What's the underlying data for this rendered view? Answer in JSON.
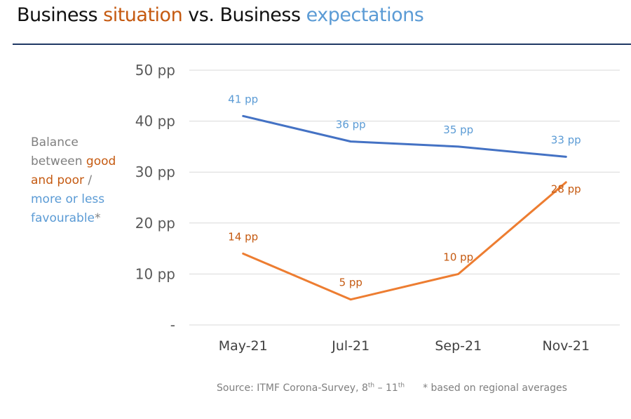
{
  "title": {
    "part1": "Business ",
    "part2": "situation",
    "part3": " vs. Business ",
    "part4": "expectations"
  },
  "ylabel": {
    "grey1": "Balance between",
    "orange": "good and poor",
    "sep": " / ",
    "blue": "more or less favourable",
    "star": "*"
  },
  "footer": {
    "source_prefix": "Source: ITMF Corona-Survey, 8",
    "sup1": "th",
    "dash": " – 11",
    "sup2": "th",
    "note": "* based on regional averages"
  },
  "colors": {
    "expectations": "#4472C4",
    "situation": "#ED7D31",
    "expectations_label": "#5B9BD5",
    "situation_label": "#C55A11",
    "grid": "#D9D9D9",
    "title_rule": "#1F3864"
  },
  "chart_data": {
    "type": "line",
    "categories": [
      "May-21",
      "Jul-21",
      "Sep-21",
      "Nov-21"
    ],
    "series": [
      {
        "key": "expectations",
        "values": [
          41,
          36,
          35,
          33
        ],
        "labels": [
          "41 pp",
          "36 pp",
          "35 pp",
          "33 pp"
        ]
      },
      {
        "key": "situation",
        "values": [
          14,
          5,
          10,
          28
        ],
        "labels": [
          "14 pp",
          "5 pp",
          "10 pp",
          "28 pp"
        ]
      }
    ],
    "yticks": [
      "-",
      "10 pp",
      "20 pp",
      "30 pp",
      "40 pp",
      "50 pp"
    ],
    "ylim": [
      0,
      50
    ],
    "grid": true
  }
}
